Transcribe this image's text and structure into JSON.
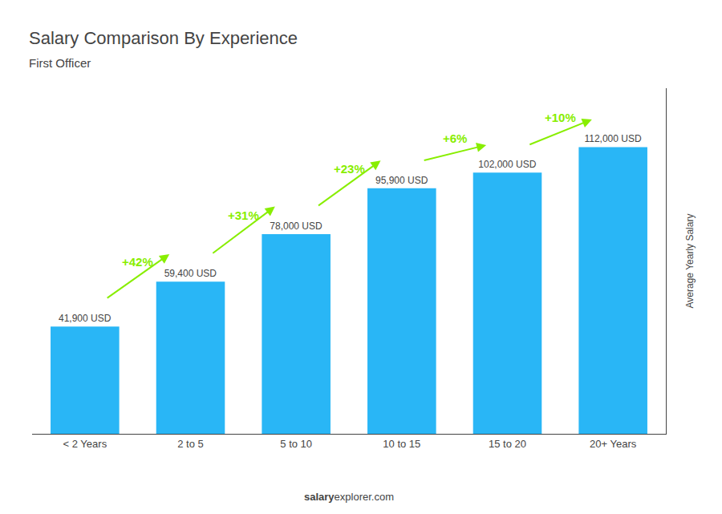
{
  "chart_data": {
    "type": "bar",
    "title": "Salary Comparison By Experience",
    "subtitle": "First Officer",
    "categories": [
      "< 2 Years",
      "2 to 5",
      "5 to 10",
      "10 to 15",
      "15 to 20",
      "20+ Years"
    ],
    "values": [
      41900,
      59400,
      78000,
      95900,
      102000,
      112000
    ],
    "value_labels": [
      "41,900 USD",
      "59,400 USD",
      "78,000 USD",
      "95,900 USD",
      "102,000 USD",
      "112,000 USD"
    ],
    "data_labels": true,
    "color": "#29b6f6",
    "ylabel": "Average Yearly Salary",
    "ylim": [
      0,
      135000
    ],
    "yticks": [],
    "tick_labels": "x",
    "grid": false,
    "annotations": [
      {
        "text": "+42%",
        "from": "< 2 Years",
        "to": "2 to 5",
        "color": "#88ee00"
      },
      {
        "text": "+31%",
        "from": "2 to 5",
        "to": "5 to 10",
        "color": "#88ee00"
      },
      {
        "text": "+23%",
        "from": "5 to 10",
        "to": "10 to 15",
        "color": "#88ee00"
      },
      {
        "text": "+6%",
        "from": "10 to 15",
        "to": "15 to 20",
        "color": "#88ee00"
      },
      {
        "text": "+10%",
        "from": "15 to 20",
        "to": "20+ Years",
        "color": "#88ee00"
      },
      {
        "text": "salary"
      },
      {
        "text": "explorer.com"
      }
    ]
  }
}
